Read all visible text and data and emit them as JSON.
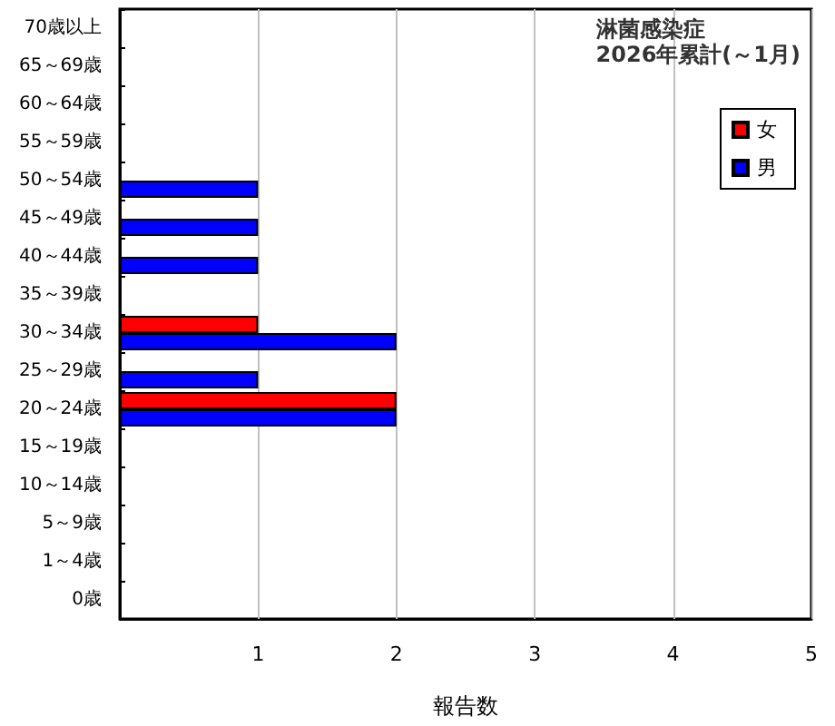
{
  "chart_data": {
    "type": "bar",
    "orientation": "horizontal",
    "title": "淋菌感染症",
    "subtitle": "2026年累計(～1月)",
    "xlabel": "報告数",
    "categories": [
      "70歳以上",
      "65～69歳",
      "60～64歳",
      "55～59歳",
      "50～54歳",
      "45～49歳",
      "40～44歳",
      "35～39歳",
      "30～34歳",
      "25～29歳",
      "20～24歳",
      "15～19歳",
      "10～14歳",
      "5～9歳",
      "1～4歳",
      "0歳"
    ],
    "series": [
      {
        "name": "女",
        "color": "#ff0000",
        "values": [
          0,
          0,
          0,
          0,
          0,
          0,
          0,
          0,
          1,
          0,
          2,
          0,
          0,
          0,
          0,
          0
        ]
      },
      {
        "name": "男",
        "color": "#0000ff",
        "values": [
          0,
          0,
          0,
          0,
          1,
          1,
          1,
          0,
          2,
          1,
          2,
          0,
          0,
          0,
          0,
          0
        ]
      }
    ],
    "xlim": [
      0,
      5
    ],
    "xticks": [
      {
        "value": 0,
        "label": null
      },
      1,
      2,
      3,
      4,
      5
    ],
    "grid": "x",
    "legend": "top right"
  }
}
